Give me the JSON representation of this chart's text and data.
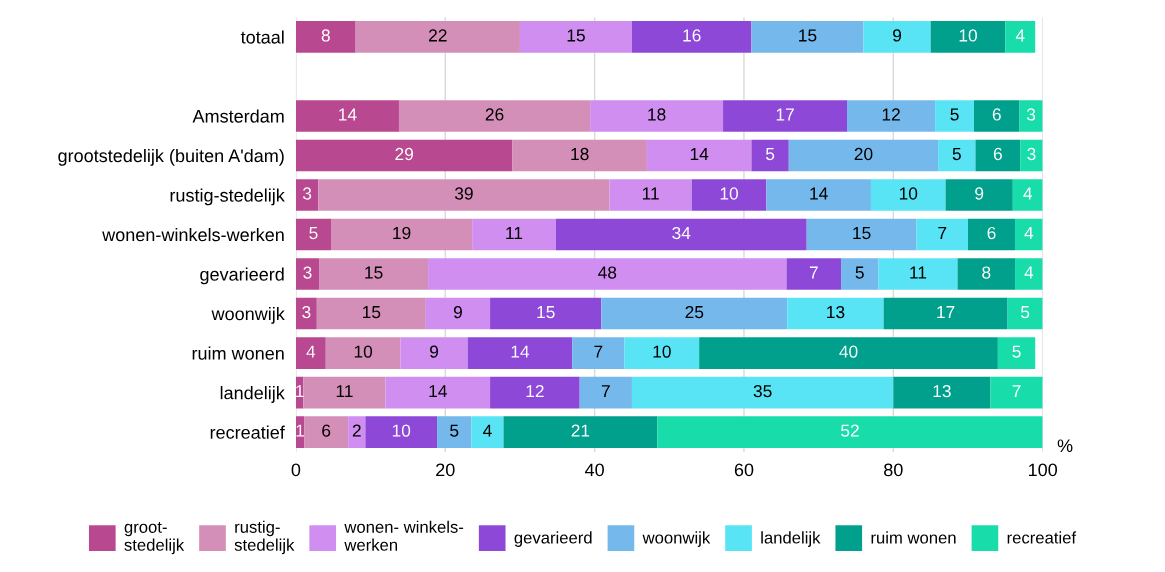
{
  "chart_data": {
    "type": "bar",
    "orientation": "horizontal",
    "stacked": true,
    "categories": [
      "totaal",
      null,
      "Amsterdam",
      "grootstedelijk (buiten A'dam)",
      "rustig-stedelijk",
      "wonen-winkels-werken",
      "gevarieerd",
      "woonwijk",
      "ruim wonen",
      "landelijk",
      "recreatief"
    ],
    "series": [
      {
        "name": "groot-\nstedelijk",
        "color": "#b8488f",
        "values": [
          8,
          null,
          13.8,
          29,
          3,
          4.7,
          3.1,
          2.8,
          4,
          1,
          1.1
        ],
        "value_labels": [
          "8",
          null,
          "14",
          "29",
          "3",
          "5",
          "3",
          "3",
          "4",
          "1",
          "1"
        ]
      },
      {
        "name": "rustig-\nstedelijk",
        "color": "#d48fb8",
        "values": [
          22,
          null,
          25.6,
          18,
          39,
          18.9,
          14.6,
          14.6,
          10,
          11,
          5.9
        ],
        "value_labels": [
          "22",
          null,
          "26",
          "18",
          "39",
          "19",
          "15",
          "15",
          "10",
          "11",
          "6"
        ]
      },
      {
        "name": "wonen- winkels-\nwerken",
        "color": "#d08ef0",
        "values": [
          15,
          null,
          17.8,
          14,
          11,
          11.2,
          48.0,
          8.6,
          9,
          14,
          2.3
        ],
        "value_labels": [
          "15",
          null,
          "18",
          "14",
          "11",
          "11",
          "48",
          "9",
          "9",
          "14",
          "2"
        ]
      },
      {
        "name": "gevarieerd",
        "color": "#8e48d8",
        "values": [
          16,
          null,
          16.6,
          5,
          10,
          33.6,
          7.3,
          14.9,
          14,
          12,
          9.6
        ],
        "value_labels": [
          "16",
          null,
          "17",
          "5",
          "10",
          "34",
          "7",
          "15",
          "14",
          "12",
          "10"
        ]
      },
      {
        "name": "woonwijk",
        "color": "#74b8ec",
        "values": [
          15,
          null,
          11.8,
          20,
          14,
          14.7,
          5.0,
          24.9,
          7,
          7,
          4.6
        ],
        "value_labels": [
          "15",
          null,
          "12",
          "20",
          "14",
          "15",
          "5",
          "25",
          "7",
          "7",
          "5"
        ]
      },
      {
        "name": "landelijk",
        "color": "#58e4f4",
        "values": [
          9,
          null,
          5.2,
          5,
          10,
          6.9,
          10.6,
          12.9,
          10,
          35,
          4.3
        ],
        "value_labels": [
          "9",
          null,
          "5",
          "5",
          "10",
          "7",
          "11",
          "13",
          "10",
          "35",
          "4"
        ]
      },
      {
        "name": "ruim wonen",
        "color": "#00a08c",
        "values": [
          10,
          null,
          6.1,
          6,
          9,
          6.3,
          7.7,
          16.6,
          40,
          13,
          20.6
        ],
        "value_labels": [
          "10",
          null,
          "6",
          "6",
          "9",
          "6",
          "8",
          "17",
          "40",
          "13",
          "21"
        ]
      },
      {
        "name": "recreatief",
        "color": "#18dcaa",
        "values": [
          4,
          null,
          3.1,
          3,
          4,
          3.7,
          3.7,
          4.7,
          5,
          7,
          51.6
        ],
        "value_labels": [
          "4",
          null,
          "3",
          "3",
          "4",
          "4",
          "4",
          "5",
          "5",
          "7",
          "52"
        ]
      }
    ],
    "xlabel": "%",
    "xlim": [
      0,
      100
    ],
    "xticks": [
      0,
      20,
      40,
      60,
      80,
      100
    ],
    "grid": "x",
    "legend": "bottom"
  }
}
